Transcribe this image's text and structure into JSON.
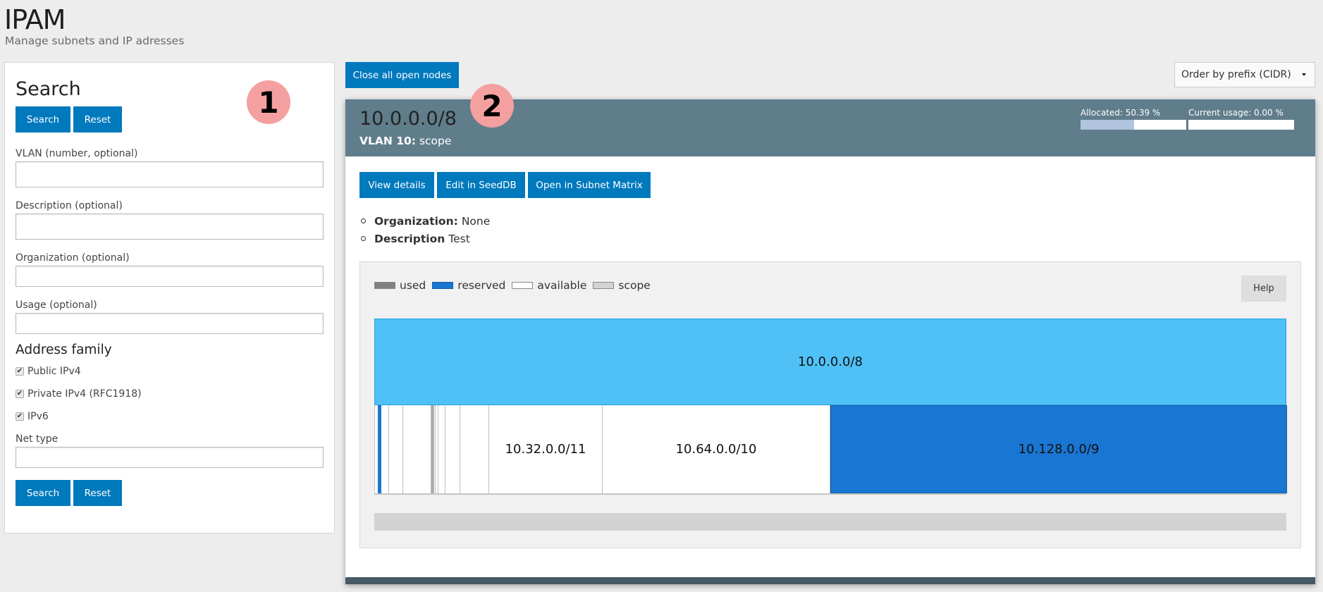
{
  "page": {
    "title": "IPAM",
    "subtitle": "Manage subnets and IP adresses"
  },
  "annotations": {
    "badge1": "1",
    "badge2": "2",
    "badge_color": "#f4a0a0"
  },
  "search": {
    "heading": "Search",
    "search_label": "Search",
    "reset_label": "Reset",
    "fields": {
      "vlan": {
        "label": "VLAN (number, optional)",
        "value": ""
      },
      "description": {
        "label": "Description (optional)",
        "value": ""
      },
      "organization": {
        "label": "Organization (optional)",
        "value": ""
      },
      "usage": {
        "label": "Usage (optional)",
        "value": ""
      },
      "net_type": {
        "label": "Net type",
        "value": ""
      }
    },
    "address_family": {
      "heading": "Address family",
      "options": [
        {
          "label": "Public IPv4",
          "checked": true
        },
        {
          "label": "Private IPv4 (RFC1918)",
          "checked": true
        },
        {
          "label": "IPv6",
          "checked": true
        }
      ]
    }
  },
  "toolbar": {
    "close_all_label": "Close all open nodes",
    "order_select": {
      "selected": "Order by prefix (CIDR)"
    }
  },
  "subnet": {
    "prefix": "10.0.0.0/8",
    "vlan_label": "VLAN 10:",
    "vlan_value": "scope",
    "allocated_label": "Allocated: 50.39 %",
    "allocated_pct": 50.39,
    "usage_label": "Current usage: 0.00 %",
    "usage_pct": 0.0,
    "actions": {
      "view_details": "View details",
      "edit_seeddb": "Edit in SeedDB",
      "open_matrix": "Open in Subnet Matrix"
    },
    "info": [
      {
        "key": "Organization:",
        "value": "None"
      },
      {
        "key": "Description",
        "value": "Test"
      }
    ],
    "legend": [
      {
        "label": "used",
        "color": "#808080"
      },
      {
        "label": "reserved",
        "color": "#1976d2"
      },
      {
        "label": "available",
        "color": "#ffffff"
      },
      {
        "label": "scope",
        "color": "#d3d3d3"
      }
    ],
    "help_label": "Help",
    "tree": {
      "root": {
        "prefix": "10.0.0.0/8",
        "type": "scope",
        "color": "#4fc1f7"
      },
      "children": [
        {
          "prefix": "10.32.0.0/11",
          "type": "available"
        },
        {
          "prefix": "10.64.0.0/10",
          "type": "available"
        },
        {
          "prefix": "10.128.0.0/9",
          "type": "reserved"
        }
      ]
    }
  }
}
